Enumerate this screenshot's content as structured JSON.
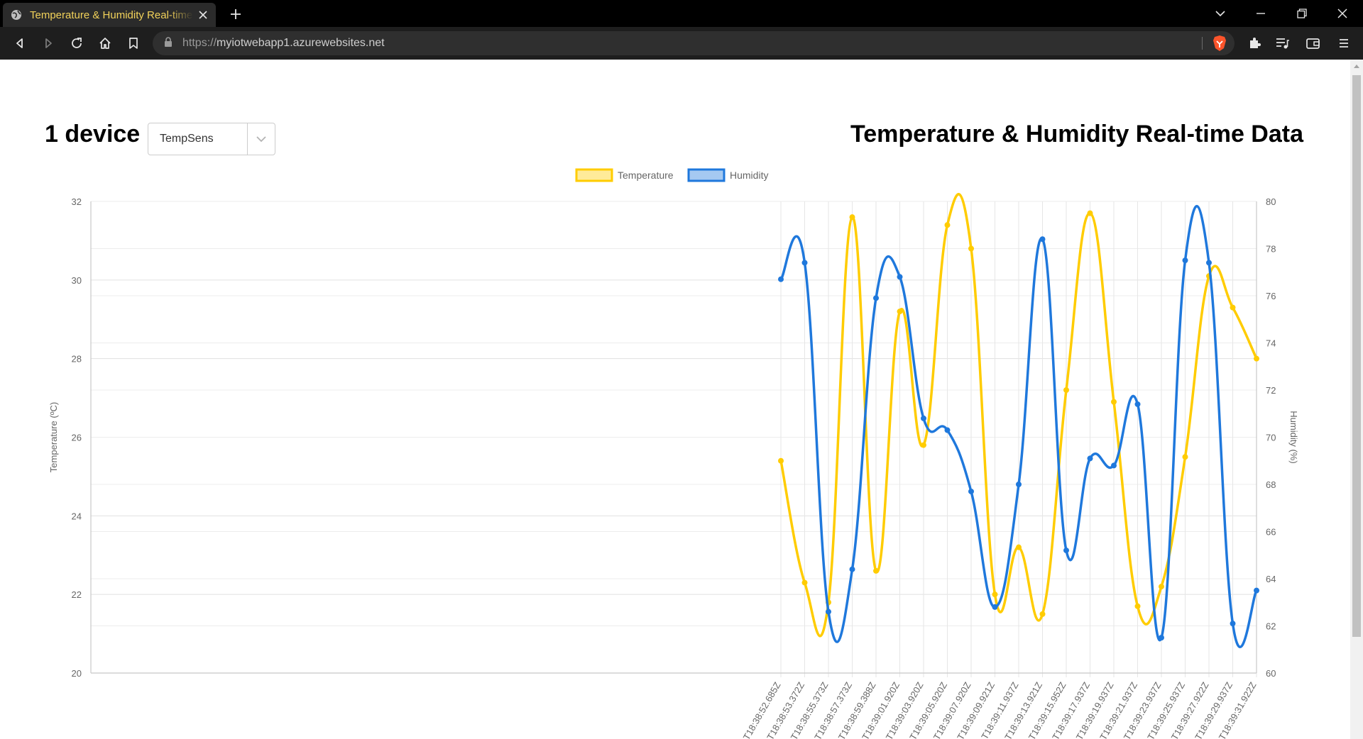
{
  "browser": {
    "tab_title": "Temperature & Humidity Real-time Data",
    "url_scheme": "https://",
    "url_host": "myiotwebapp1.azurewebsites.net"
  },
  "header": {
    "device_count": "1 device",
    "device_select": {
      "selected": "TempSens"
    },
    "title": "Temperature & Humidity Real-time Data"
  },
  "colors": {
    "temperature": "#FFCC00",
    "humidity": "#1F78DC"
  },
  "chart_data": {
    "type": "line",
    "legend": {
      "placement": "top-center"
    },
    "grid": true,
    "x": [
      "T18:38:52.685Z",
      "T18:38:53.372Z",
      "T18:38:55.373Z",
      "T18:38:57.373Z",
      "T18:38:59.388Z",
      "T18:39:01.920Z",
      "T18:39:03.920Z",
      "T18:39:05.920Z",
      "T18:39:07.920Z",
      "T18:39:09.921Z",
      "T18:39:11.937Z",
      "T18:39:13.921Z",
      "T18:39:15.952Z",
      "T18:39:17.937Z",
      "T18:39:19.937Z",
      "T18:39:21.937Z",
      "T18:39:23.937Z",
      "T18:39:25.937Z",
      "T18:39:27.922Z",
      "T18:39:29.937Z",
      "T18:39:31.922Z"
    ],
    "series": [
      {
        "name": "Temperature",
        "axis": "left",
        "color": "#FFCC00",
        "values": [
          25.4,
          22.3,
          21.8,
          31.6,
          22.6,
          29.2,
          25.8,
          31.4,
          30.8,
          22.0,
          23.2,
          21.5,
          27.2,
          31.7,
          26.9,
          21.7,
          22.2,
          25.5,
          30.1,
          29.3,
          28.0
        ]
      },
      {
        "name": "Humidity",
        "axis": "right",
        "color": "#1F78DC",
        "values": [
          76.7,
          77.4,
          62.6,
          64.4,
          75.9,
          76.8,
          70.8,
          70.3,
          67.7,
          62.8,
          68.0,
          78.4,
          65.2,
          69.1,
          68.8,
          71.4,
          61.5,
          77.5,
          77.4,
          62.1,
          63.5
        ]
      }
    ],
    "y_left": {
      "label": "Temperature (ºC)",
      "min": 20,
      "max": 32,
      "ticks": [
        "20",
        "22",
        "24",
        "26",
        "28",
        "30",
        "32"
      ]
    },
    "y_right": {
      "label": "Humidity (%)",
      "min": 60,
      "max": 80,
      "ticks": [
        "60",
        "62",
        "64",
        "66",
        "68",
        "70",
        "72",
        "74",
        "76",
        "78",
        "80"
      ]
    }
  }
}
